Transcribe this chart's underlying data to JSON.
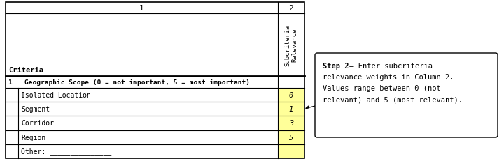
{
  "col1_header": "1",
  "col2_header": "2",
  "col2_subheader": "Subcriteria\nRelevance",
  "criteria_label": "Criteria",
  "section_header": "1   Geographic Scope (0 = not important, 5 = most important)",
  "rows": [
    {
      "label": "Isolated Location",
      "value": "0"
    },
    {
      "label": "Segment",
      "value": "1"
    },
    {
      "label": "Corridor",
      "value": "3"
    },
    {
      "label": "Region",
      "value": "5"
    },
    {
      "label": "Other: _______________",
      "value": ""
    }
  ],
  "callout_line1_bold": "Step 2",
  "callout_line1_rest": " – Enter subcriteria",
  "callout_lines_rest": [
    "relevance weights in Column 2.",
    "Values range between 0 (not",
    "relevant) and 5 (most relevant)."
  ],
  "yellow_color": "#FFFF99",
  "border_color": "#000000",
  "background_color": "#ffffff"
}
